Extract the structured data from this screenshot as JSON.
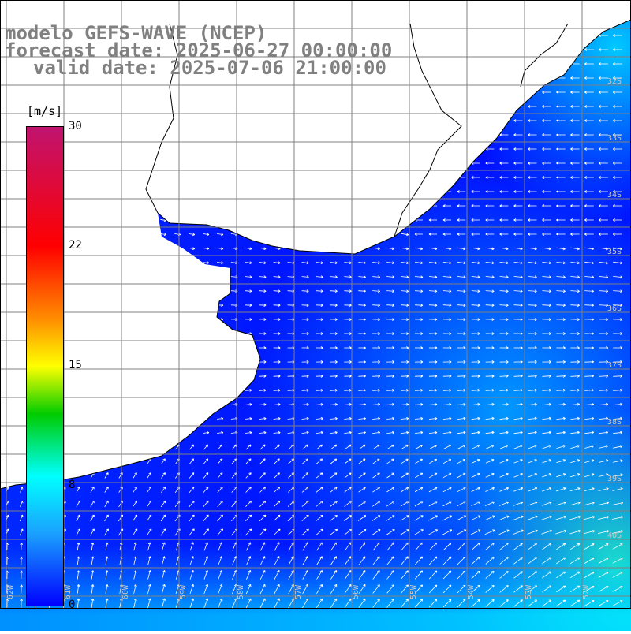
{
  "header": {
    "model": "modelo GEFS-WAVE (NCEP)",
    "forecast": "forecast date: 2025-06-27 00:00:00",
    "valid": "valid date: 2025-07-06 21:00:00"
  },
  "colorbar": {
    "unit": "[m/s]",
    "ticks": [
      {
        "label": "30",
        "value": 30
      },
      {
        "label": "22",
        "value": 22
      },
      {
        "label": "15",
        "value": 15
      },
      {
        "label": "8",
        "value": 8
      },
      {
        "label": "0",
        "value": 0
      }
    ],
    "range": [
      0,
      30
    ]
  },
  "map": {
    "lat_labels": [
      "32S",
      "33S",
      "34S",
      "35S",
      "36S",
      "37S",
      "38S",
      "39S",
      "40S"
    ],
    "lon_labels": [
      "62W",
      "61W",
      "60W",
      "59W",
      "58W",
      "57W",
      "56W",
      "55W",
      "54W",
      "53W",
      "52W"
    ],
    "colors": {
      "land": "#ffffff",
      "coast": "#000000",
      "grid": "#808080",
      "arrow": "#ffffff",
      "title": "#808080"
    }
  }
}
